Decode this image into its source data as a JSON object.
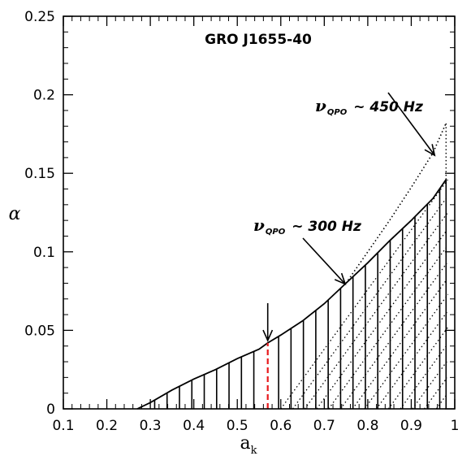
{
  "chart_data": {
    "type": "line",
    "title": "GRO J1655-40",
    "xlabel": "a",
    "xlabel_sub": "k",
    "ylabel": "α",
    "xlim": [
      0.1,
      1.0
    ],
    "ylim": [
      0,
      0.25
    ],
    "xticks": [
      "0.1",
      "0.2",
      "0.3",
      "0.4",
      "0.5",
      "0.6",
      "0.7",
      "0.8",
      "0.9",
      "1"
    ],
    "yticks": [
      "0",
      "0.05",
      "0.1",
      "0.15",
      "0.2",
      "0.25"
    ],
    "series": [
      {
        "style": "solid-boundary",
        "x": [
          0.27,
          0.3,
          0.35,
          0.4,
          0.45,
          0.5,
          0.55,
          0.57,
          0.6,
          0.65,
          0.7,
          0.75,
          0.8,
          0.85,
          0.9,
          0.95,
          0.98
        ],
        "y": [
          0.0,
          0.004,
          0.012,
          0.019,
          0.025,
          0.032,
          0.038,
          0.042,
          0.047,
          0.056,
          0.067,
          0.08,
          0.093,
          0.107,
          0.12,
          0.134,
          0.146
        ]
      },
      {
        "style": "dotted-boundary",
        "x": [
          0.75,
          0.8,
          0.85,
          0.9,
          0.95,
          0.98
        ],
        "y": [
          0.08,
          0.1,
          0.12,
          0.141,
          0.163,
          0.182
        ]
      }
    ],
    "marker_line": {
      "x": 0.57,
      "y": 0.042,
      "color": "#e8191c"
    },
    "annotations": [
      {
        "label": "ν",
        "sub": "QPO",
        "text": "~ 300 Hz",
        "target_x": 0.75,
        "target_y": 0.08
      },
      {
        "label": "ν",
        "sub": "QPO",
        "text": "~ 450 Hz",
        "target_x": 0.95,
        "target_y": 0.162
      }
    ]
  }
}
